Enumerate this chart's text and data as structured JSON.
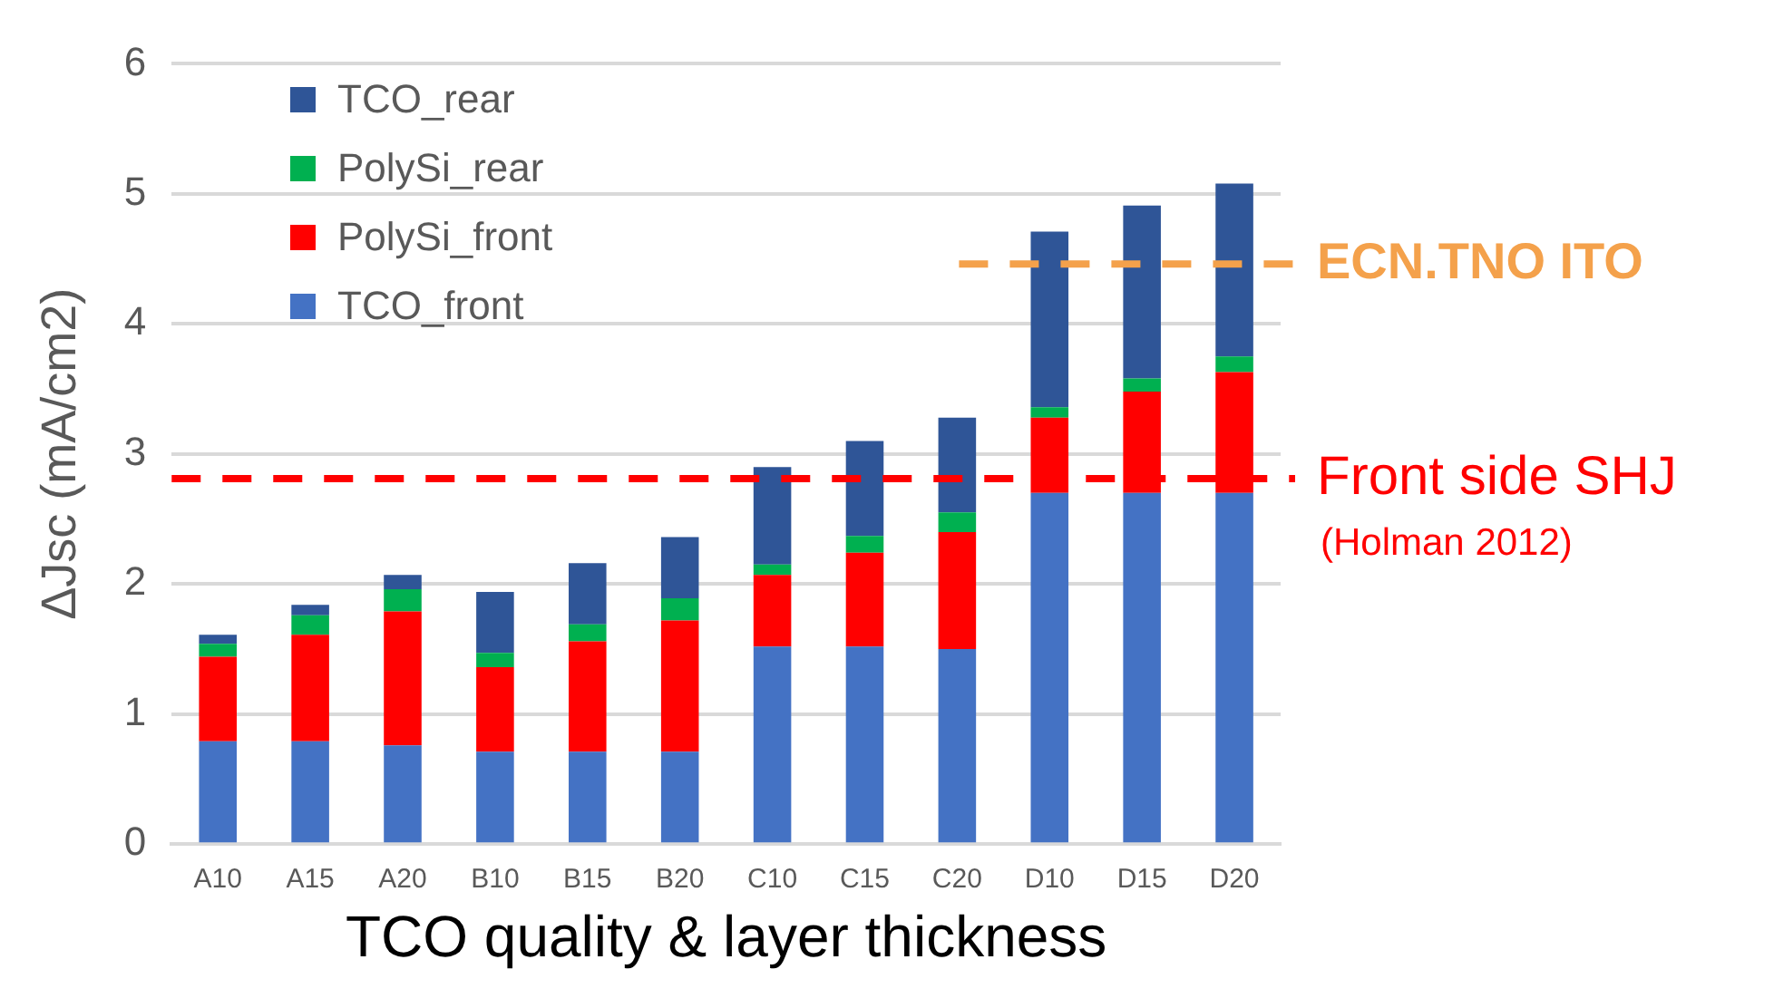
{
  "chart_data": {
    "type": "bar",
    "stacked": true,
    "xlabel": "TCO quality & layer thickness",
    "ylabel": "ΔJsc (mA/cm2)",
    "categories": [
      "A10",
      "A15",
      "A20",
      "B10",
      "B15",
      "B20",
      "C10",
      "C15",
      "C20",
      "D10",
      "D15",
      "D20"
    ],
    "series": [
      {
        "name": "TCO_front",
        "color": "#4472c4",
        "values": [
          0.79,
          0.79,
          0.76,
          0.71,
          0.71,
          0.71,
          1.52,
          1.52,
          1.5,
          2.7,
          2.7,
          2.7
        ]
      },
      {
        "name": "PolySi_front",
        "color": "#ff0000",
        "values": [
          0.65,
          0.82,
          1.03,
          0.65,
          0.85,
          1.01,
          0.55,
          0.72,
          0.9,
          0.58,
          0.78,
          0.93
        ]
      },
      {
        "name": "PolySi_rear",
        "color": "#00b050",
        "values": [
          0.1,
          0.15,
          0.17,
          0.11,
          0.13,
          0.17,
          0.08,
          0.13,
          0.15,
          0.08,
          0.1,
          0.12
        ]
      },
      {
        "name": "TCO_rear",
        "color": "#2f5597",
        "values": [
          0.07,
          0.08,
          0.11,
          0.47,
          0.47,
          0.47,
          0.75,
          0.73,
          0.73,
          1.35,
          1.33,
          1.33
        ]
      }
    ],
    "ylim": [
      0,
      6
    ],
    "yticks": [
      0,
      1,
      2,
      3,
      4,
      5,
      6
    ],
    "grid": "y",
    "legend": "top left",
    "ref_lines": [
      {
        "axis": "y",
        "value": 2.81,
        "label": "Front side SHJ",
        "color": "#ff0000",
        "line_style": "dashed"
      },
      {
        "axis": "y",
        "value": 4.46,
        "label": "ECN.TNO ITO",
        "color": "#f4a14b",
        "line_style": "dashed"
      }
    ],
    "annotations": [
      "(Holman 2012)"
    ]
  }
}
